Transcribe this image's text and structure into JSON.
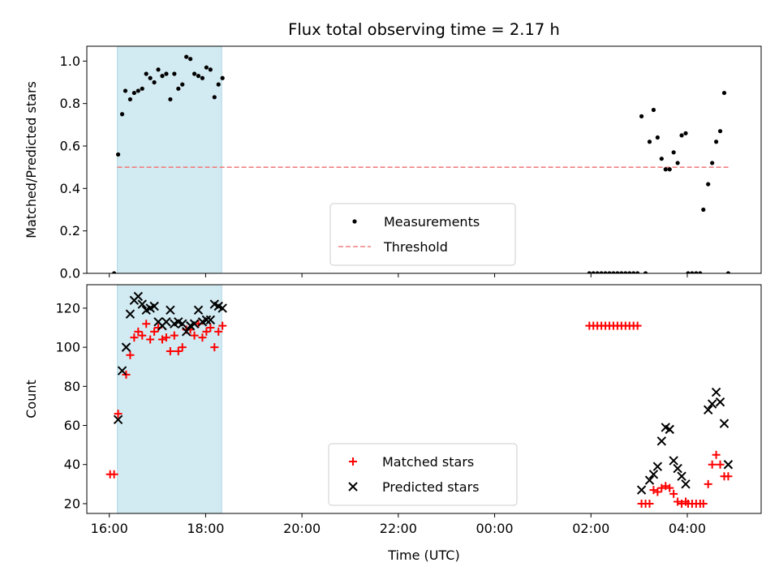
{
  "chart_data": [
    {
      "type": "scatter",
      "title": "Flux total observing time = 2.17 h",
      "xlabel": "",
      "ylabel": "Matched/Predicted stars",
      "xlim": [
        "15:32",
        "05:32"
      ],
      "ylim": [
        0,
        1.07
      ],
      "y_ticks": [
        "0.0",
        "0.2",
        "0.4",
        "0.6",
        "0.8",
        "1.0"
      ],
      "grid": false,
      "legend_position": "lower center",
      "highlight_span": {
        "x0": "16:10",
        "x1": "18:20",
        "color": "#add8e6"
      },
      "threshold": {
        "name": "Threshold",
        "value": 0.5,
        "x0": "16:10",
        "x1": "04:52",
        "color": "#f08080"
      },
      "series": [
        {
          "name": "Measurements",
          "color": "#000000",
          "points": [
            [
              "16:06",
              0.0
            ],
            [
              "16:11",
              0.56
            ],
            [
              "16:16",
              0.75
            ],
            [
              "16:20",
              0.86
            ],
            [
              "16:26",
              0.82
            ],
            [
              "16:31",
              0.85
            ],
            [
              "16:36",
              0.86
            ],
            [
              "16:41",
              0.87
            ],
            [
              "16:46",
              0.94
            ],
            [
              "16:51",
              0.92
            ],
            [
              "16:56",
              0.9
            ],
            [
              "17:01",
              0.96
            ],
            [
              "17:06",
              0.93
            ],
            [
              "17:11",
              0.94
            ],
            [
              "17:16",
              0.82
            ],
            [
              "17:21",
              0.94
            ],
            [
              "17:26",
              0.87
            ],
            [
              "17:31",
              0.89
            ],
            [
              "17:36",
              1.02
            ],
            [
              "17:41",
              1.01
            ],
            [
              "17:46",
              0.94
            ],
            [
              "17:51",
              0.93
            ],
            [
              "17:56",
              0.92
            ],
            [
              "18:01",
              0.97
            ],
            [
              "18:06",
              0.96
            ],
            [
              "18:11",
              0.83
            ],
            [
              "18:16",
              0.89
            ],
            [
              "18:21",
              0.92
            ],
            [
              "01:58",
              0.0
            ],
            [
              "02:03",
              0.0
            ],
            [
              "02:08",
              0.0
            ],
            [
              "02:13",
              0.0
            ],
            [
              "02:18",
              0.0
            ],
            [
              "02:23",
              0.0
            ],
            [
              "02:28",
              0.0
            ],
            [
              "02:33",
              0.0
            ],
            [
              "02:38",
              0.0
            ],
            [
              "02:43",
              0.0
            ],
            [
              "02:48",
              0.0
            ],
            [
              "02:53",
              0.0
            ],
            [
              "02:58",
              0.0
            ],
            [
              "03:03",
              0.74
            ],
            [
              "03:08",
              0.0
            ],
            [
              "03:13",
              0.62
            ],
            [
              "03:18",
              0.77
            ],
            [
              "03:23",
              0.64
            ],
            [
              "03:28",
              0.54
            ],
            [
              "03:33",
              0.49
            ],
            [
              "03:38",
              0.49
            ],
            [
              "03:43",
              0.57
            ],
            [
              "03:48",
              0.52
            ],
            [
              "03:53",
              0.65
            ],
            [
              "03:58",
              0.66
            ],
            [
              "04:01",
              0.0
            ],
            [
              "04:06",
              0.0
            ],
            [
              "04:11",
              0.0
            ],
            [
              "04:16",
              0.0
            ],
            [
              "04:20",
              0.3
            ],
            [
              "04:26",
              0.42
            ],
            [
              "04:31",
              0.52
            ],
            [
              "04:36",
              0.62
            ],
            [
              "04:41",
              0.67
            ],
            [
              "04:46",
              0.85
            ],
            [
              "04:51",
              0.0
            ]
          ]
        }
      ]
    },
    {
      "type": "scatter",
      "xlabel": "Time (UTC)",
      "ylabel": "Count",
      "xlim": [
        "15:32",
        "05:32"
      ],
      "ylim": [
        15,
        132
      ],
      "x_ticks": [
        "16:00",
        "18:00",
        "20:00",
        "22:00",
        "00:00",
        "02:00",
        "04:00"
      ],
      "y_ticks": [
        "20",
        "40",
        "60",
        "80",
        "100",
        "120"
      ],
      "grid": false,
      "legend_position": "lower center",
      "highlight_span": {
        "x0": "16:10",
        "x1": "18:20",
        "color": "#add8e6"
      },
      "series": [
        {
          "name": "Matched stars",
          "marker": "plus",
          "color": "#ff0000",
          "points": [
            [
              "16:01",
              35
            ],
            [
              "16:06",
              35
            ],
            [
              "16:11",
              66
            ],
            [
              "16:21",
              86
            ],
            [
              "16:26",
              96
            ],
            [
              "16:31",
              105
            ],
            [
              "16:36",
              108
            ],
            [
              "16:41",
              106
            ],
            [
              "16:46",
              112
            ],
            [
              "16:51",
              104
            ],
            [
              "16:56",
              108
            ],
            [
              "17:01",
              110
            ],
            [
              "17:06",
              104
            ],
            [
              "17:11",
              105
            ],
            [
              "17:16",
              98
            ],
            [
              "17:21",
              106
            ],
            [
              "17:26",
              98
            ],
            [
              "17:31",
              100
            ],
            [
              "17:36",
              109
            ],
            [
              "17:41",
              109
            ],
            [
              "17:46",
              106
            ],
            [
              "17:51",
              112
            ],
            [
              "17:56",
              105
            ],
            [
              "18:01",
              108
            ],
            [
              "18:06",
              110
            ],
            [
              "18:11",
              100
            ],
            [
              "18:16",
              108
            ],
            [
              "18:21",
              111
            ],
            [
              "01:58",
              111
            ],
            [
              "02:03",
              111
            ],
            [
              "02:08",
              111
            ],
            [
              "02:13",
              111
            ],
            [
              "02:18",
              111
            ],
            [
              "02:23",
              111
            ],
            [
              "02:28",
              111
            ],
            [
              "02:33",
              111
            ],
            [
              "02:38",
              111
            ],
            [
              "02:43",
              111
            ],
            [
              "02:48",
              111
            ],
            [
              "02:53",
              111
            ],
            [
              "02:58",
              111
            ],
            [
              "03:03",
              20
            ],
            [
              "03:08",
              20
            ],
            [
              "03:13",
              20
            ],
            [
              "03:18",
              27
            ],
            [
              "03:23",
              26
            ],
            [
              "03:28",
              28
            ],
            [
              "03:33",
              29
            ],
            [
              "03:38",
              28
            ],
            [
              "03:43",
              25
            ],
            [
              "03:48",
              21
            ],
            [
              "03:53",
              20
            ],
            [
              "03:58",
              21
            ],
            [
              "04:01",
              20
            ],
            [
              "04:06",
              20
            ],
            [
              "04:11",
              20
            ],
            [
              "04:16",
              20
            ],
            [
              "04:20",
              20
            ],
            [
              "04:26",
              30
            ],
            [
              "04:31",
              40
            ],
            [
              "04:36",
              45
            ],
            [
              "04:41",
              40
            ],
            [
              "04:46",
              34
            ],
            [
              "04:51",
              34
            ]
          ]
        },
        {
          "name": "Predicted stars",
          "marker": "x",
          "color": "#000000",
          "points": [
            [
              "16:11",
              63
            ],
            [
              "16:16",
              88
            ],
            [
              "16:21",
              100
            ],
            [
              "16:26",
              117
            ],
            [
              "16:31",
              124
            ],
            [
              "16:36",
              126
            ],
            [
              "16:41",
              122
            ],
            [
              "16:46",
              119
            ],
            [
              "16:51",
              120
            ],
            [
              "16:56",
              121
            ],
            [
              "17:01",
              113
            ],
            [
              "17:06",
              111
            ],
            [
              "17:11",
              113
            ],
            [
              "17:16",
              119
            ],
            [
              "17:21",
              112
            ],
            [
              "17:26",
              113
            ],
            [
              "17:31",
              112
            ],
            [
              "17:36",
              108
            ],
            [
              "17:41",
              111
            ],
            [
              "17:46",
              112
            ],
            [
              "17:51",
              119
            ],
            [
              "17:56",
              113
            ],
            [
              "18:01",
              114
            ],
            [
              "18:06",
              114
            ],
            [
              "18:11",
              122
            ],
            [
              "18:16",
              121
            ],
            [
              "18:21",
              120
            ],
            [
              "03:03",
              27
            ],
            [
              "03:13",
              32
            ],
            [
              "03:18",
              35
            ],
            [
              "03:23",
              39
            ],
            [
              "03:28",
              52
            ],
            [
              "03:33",
              59
            ],
            [
              "03:38",
              58
            ],
            [
              "03:43",
              42
            ],
            [
              "03:48",
              38
            ],
            [
              "03:53",
              34
            ],
            [
              "03:58",
              30
            ],
            [
              "04:26",
              68
            ],
            [
              "04:31",
              71
            ],
            [
              "04:36",
              77
            ],
            [
              "04:41",
              72
            ],
            [
              "04:46",
              61
            ],
            [
              "04:51",
              40
            ]
          ]
        }
      ]
    }
  ]
}
